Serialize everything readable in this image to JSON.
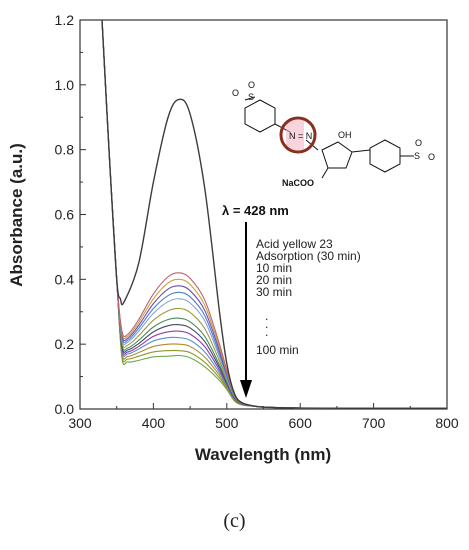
{
  "figure": {
    "caption": "(c)"
  },
  "chart_data": {
    "type": "line",
    "title": "",
    "xlabel": "Wavelength (nm)",
    "ylabel": "Absorbance (a.u.)",
    "xlim": [
      300,
      800
    ],
    "ylim": [
      0.0,
      1.2
    ],
    "xticks": [
      300,
      400,
      500,
      600,
      700,
      800
    ],
    "yticks": [
      0.0,
      0.2,
      0.4,
      0.6,
      0.8,
      1.0,
      1.2
    ],
    "xtick_labels": [
      "300",
      "400",
      "500",
      "600",
      "700",
      "800"
    ],
    "ytick_labels": [
      "0.0",
      "0.2",
      "0.4",
      "0.6",
      "0.8",
      "1.0",
      "1.2"
    ],
    "grid": false,
    "annotations": {
      "arrow_label": "λ = 428 nm",
      "legend_lines": [
        "Acid yellow 23",
        "Adsorption (30 min)",
        "10 min",
        "20 min",
        "30 min",
        ".",
        ".",
        ".",
        "100 min"
      ],
      "structure_labels": {
        "azo": "N = N",
        "hydroxyl": "OH",
        "carboxylate": "NaCOO",
        "sulfonate": "S",
        "oxygen": "O"
      }
    },
    "series": [
      {
        "name": "Acid yellow 23",
        "color": "#3c3c3c",
        "x": [
          330,
          340,
          350,
          355,
          360,
          380,
          400,
          420,
          435,
          450,
          470,
          490,
          500,
          510,
          520,
          540,
          560,
          600,
          700,
          800
        ],
        "y": [
          1.2,
          0.78,
          0.4,
          0.34,
          0.33,
          0.45,
          0.7,
          0.9,
          0.955,
          0.91,
          0.68,
          0.3,
          0.14,
          0.05,
          0.02,
          0.008,
          0.005,
          0.003,
          0.002,
          0.002
        ]
      },
      {
        "name": "",
        "color": "#c06070",
        "x": [
          330,
          340,
          350,
          357,
          365,
          380,
          400,
          420,
          435,
          450,
          470,
          490,
          500,
          510,
          520,
          540,
          560,
          600,
          700,
          800
        ],
        "y": [
          1.2,
          0.78,
          0.4,
          0.242,
          0.23,
          0.276,
          0.355,
          0.408,
          0.42,
          0.403,
          0.336,
          0.2,
          0.12,
          0.05,
          0.02,
          0.008,
          0.005,
          0.003,
          0.002,
          0.002
        ]
      },
      {
        "name": "",
        "color": "#c9a13a",
        "x": [
          330,
          340,
          350,
          357,
          365,
          380,
          400,
          420,
          435,
          450,
          470,
          490,
          500,
          510,
          520,
          540,
          560,
          600,
          700,
          800
        ],
        "y": [
          1.2,
          0.78,
          0.4,
          0.236,
          0.224,
          0.267,
          0.34,
          0.389,
          0.4,
          0.384,
          0.32,
          0.19,
          0.114,
          0.048,
          0.02,
          0.008,
          0.005,
          0.003,
          0.002,
          0.002
        ]
      },
      {
        "name": "",
        "color": "#6a4fb3",
        "x": [
          330,
          340,
          350,
          357,
          365,
          380,
          400,
          420,
          435,
          450,
          470,
          490,
          500,
          510,
          520,
          540,
          560,
          600,
          700,
          800
        ],
        "y": [
          1.2,
          0.78,
          0.4,
          0.23,
          0.218,
          0.258,
          0.325,
          0.37,
          0.38,
          0.365,
          0.304,
          0.18,
          0.108,
          0.046,
          0.019,
          0.008,
          0.005,
          0.003,
          0.002,
          0.002
        ]
      },
      {
        "name": "",
        "color": "#4a7fd0",
        "x": [
          330,
          340,
          350,
          357,
          365,
          380,
          400,
          420,
          435,
          450,
          470,
          490,
          500,
          510,
          520,
          540,
          560,
          600,
          700,
          800
        ],
        "y": [
          1.2,
          0.78,
          0.4,
          0.224,
          0.212,
          0.249,
          0.31,
          0.35,
          0.36,
          0.346,
          0.288,
          0.17,
          0.102,
          0.044,
          0.018,
          0.008,
          0.005,
          0.003,
          0.002,
          0.002
        ]
      },
      {
        "name": "",
        "color": "#8a9fd8",
        "x": [
          330,
          340,
          350,
          357,
          365,
          380,
          400,
          420,
          435,
          450,
          470,
          490,
          500,
          510,
          520,
          540,
          560,
          600,
          700,
          800
        ],
        "y": [
          1.2,
          0.78,
          0.4,
          0.218,
          0.206,
          0.24,
          0.295,
          0.331,
          0.34,
          0.327,
          0.272,
          0.16,
          0.096,
          0.042,
          0.018,
          0.008,
          0.005,
          0.003,
          0.002,
          0.002
        ]
      },
      {
        "name": "",
        "color": "#9b9b3a",
        "x": [
          330,
          340,
          350,
          357,
          365,
          380,
          400,
          420,
          435,
          450,
          470,
          490,
          500,
          510,
          520,
          540,
          560,
          600,
          700,
          800
        ],
        "y": [
          1.2,
          0.78,
          0.4,
          0.21,
          0.197,
          0.226,
          0.274,
          0.303,
          0.31,
          0.298,
          0.248,
          0.148,
          0.09,
          0.04,
          0.017,
          0.008,
          0.005,
          0.003,
          0.002,
          0.002
        ]
      },
      {
        "name": "",
        "color": "#4b8a5a",
        "x": [
          330,
          340,
          350,
          357,
          365,
          380,
          400,
          420,
          435,
          450,
          470,
          490,
          500,
          510,
          520,
          540,
          560,
          600,
          700,
          800
        ],
        "y": [
          1.2,
          0.78,
          0.4,
          0.202,
          0.188,
          0.212,
          0.253,
          0.276,
          0.28,
          0.269,
          0.224,
          0.136,
          0.084,
          0.038,
          0.016,
          0.008,
          0.005,
          0.003,
          0.002,
          0.002
        ]
      },
      {
        "name": "",
        "color": "#444a66",
        "x": [
          330,
          340,
          350,
          357,
          365,
          380,
          400,
          420,
          435,
          450,
          470,
          490,
          500,
          510,
          520,
          540,
          560,
          600,
          700,
          800
        ],
        "y": [
          1.2,
          0.78,
          0.4,
          0.196,
          0.182,
          0.202,
          0.238,
          0.257,
          0.26,
          0.25,
          0.208,
          0.128,
          0.08,
          0.036,
          0.016,
          0.008,
          0.005,
          0.003,
          0.002,
          0.002
        ]
      },
      {
        "name": "",
        "color": "#8a3fb0",
        "x": [
          330,
          340,
          350,
          357,
          365,
          380,
          400,
          420,
          435,
          450,
          470,
          490,
          500,
          510,
          520,
          540,
          560,
          600,
          700,
          800
        ],
        "y": [
          1.2,
          0.78,
          0.4,
          0.19,
          0.176,
          0.193,
          0.224,
          0.238,
          0.24,
          0.231,
          0.192,
          0.12,
          0.076,
          0.034,
          0.015,
          0.008,
          0.005,
          0.003,
          0.002,
          0.002
        ]
      },
      {
        "name": "",
        "color": "#5a8fd6",
        "x": [
          330,
          340,
          350,
          357,
          365,
          380,
          400,
          420,
          435,
          450,
          470,
          490,
          500,
          510,
          520,
          540,
          560,
          600,
          700,
          800
        ],
        "y": [
          1.2,
          0.78,
          0.4,
          0.184,
          0.17,
          0.185,
          0.21,
          0.22,
          0.22,
          0.212,
          0.176,
          0.112,
          0.072,
          0.032,
          0.015,
          0.008,
          0.005,
          0.003,
          0.002,
          0.002
        ]
      },
      {
        "name": "",
        "color": "#b08a2a",
        "x": [
          330,
          340,
          350,
          357,
          365,
          380,
          400,
          420,
          435,
          450,
          470,
          490,
          500,
          510,
          520,
          540,
          560,
          600,
          700,
          800
        ],
        "y": [
          1.2,
          0.78,
          0.4,
          0.176,
          0.162,
          0.174,
          0.193,
          0.2,
          0.2,
          0.193,
          0.16,
          0.104,
          0.068,
          0.03,
          0.014,
          0.008,
          0.005,
          0.003,
          0.002,
          0.002
        ]
      },
      {
        "name": "",
        "color": "#8a9a2a",
        "x": [
          330,
          340,
          350,
          357,
          365,
          380,
          400,
          420,
          435,
          450,
          470,
          490,
          500,
          510,
          520,
          540,
          560,
          600,
          700,
          800
        ],
        "y": [
          1.2,
          0.78,
          0.4,
          0.168,
          0.154,
          0.163,
          0.176,
          0.18,
          0.18,
          0.174,
          0.144,
          0.096,
          0.064,
          0.028,
          0.014,
          0.008,
          0.005,
          0.003,
          0.002,
          0.002
        ]
      },
      {
        "name": "",
        "color": "#6aaa4a",
        "x": [
          330,
          340,
          350,
          357,
          365,
          380,
          400,
          420,
          435,
          450,
          470,
          490,
          500,
          510,
          520,
          540,
          560,
          600,
          700,
          800
        ],
        "y": [
          1.2,
          0.78,
          0.4,
          0.16,
          0.145,
          0.15,
          0.161,
          0.163,
          0.165,
          0.158,
          0.13,
          0.088,
          0.06,
          0.026,
          0.013,
          0.008,
          0.005,
          0.003,
          0.002,
          0.002
        ]
      }
    ]
  }
}
